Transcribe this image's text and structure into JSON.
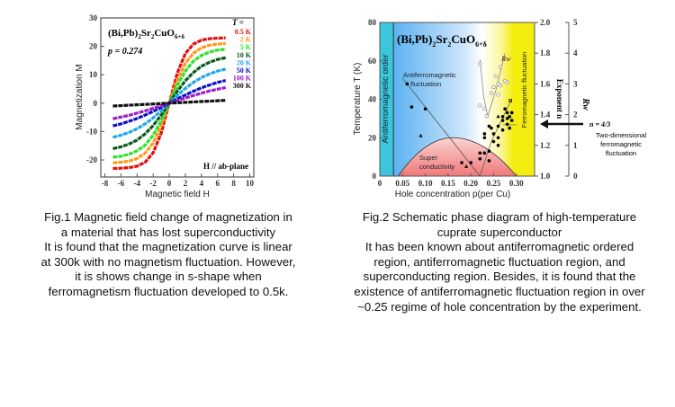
{
  "fig1": {
    "compound": "(Bi,Pb)",
    "sub1": "2",
    "sr": "Sr",
    "sub2": "2",
    "cuo": "CuO",
    "sub3": "6+δ",
    "p_label": "p = 0.274",
    "t_header": "T =",
    "field_note": "H // ab-plane",
    "xlabel": "Magnetic field H",
    "ylabel": "Magnetization M"
  },
  "fig2": {
    "compound": "(Bi,Pb)",
    "sub1": "2",
    "sr": "Sr",
    "sub2": "2",
    "cuo": "CuO",
    "sub3": "6+δ",
    "af_order": "Antiferromagnetic order",
    "af_fluct1": "Antiferromagnetic",
    "af_fluct2": "fluctuation",
    "sc1": "Super",
    "sc2": "conductivity",
    "fm_fluct": "Ferromagnetic fluctuation",
    "rw_label": "Rw",
    "n_label": "n",
    "exponent_label": "Exponent n",
    "rw_axis_label": "Rw",
    "n43": "n = 4/3",
    "twod1": "Two-dimensional",
    "twod2": "ferromagnetic",
    "twod3": "fluctuation",
    "xlabel": "Hole concentration p(per Cu)",
    "ylabel": "Temperature T (K)"
  },
  "caption1": [
    "Fig.1 Magnetic field change of magnetization in",
    "a material that has lost superconductivity",
    "It is found that the magnetization curve is linear",
    "at 300k with no magnetism fluctuation. However,",
    "it is shows change in s-shape when",
    "ferromagnetism fluctuation developed to 0.5k."
  ],
  "caption2": [
    "Fig.2 Schematic phase diagram of high-temperature",
    "cuprate superconductor",
    "It has been known about antiferromagnetic ordered",
    "region, antiferromagnetic fluctuation region, and",
    "superconducting region. Besides, it is found that the",
    "existence of antiferromagnetic fluctuation region in over",
    "~0.25 regime of hole concentration by the experiment."
  ],
  "chart_data": [
    {
      "type": "line",
      "title": "(Bi,Pb)2Sr2CuO6+δ, p = 0.274",
      "xlabel": "Magnetic field H",
      "ylabel": "Magnetization M",
      "xlim": [
        -8.5,
        10.5
      ],
      "ylim": [
        -26,
        30
      ],
      "xticks": [
        -8,
        -6,
        -4,
        -2,
        0,
        2,
        4,
        6,
        8,
        10
      ],
      "yticks": [
        -20,
        -10,
        0,
        10,
        20,
        30
      ],
      "symmetry": "odd",
      "x": [
        0,
        1,
        2,
        3,
        4,
        5,
        6,
        7
      ],
      "series": [
        {
          "name": "0.5 K",
          "color": "#e01010",
          "values": [
            0,
            10.6,
            17.5,
            20.8,
            22.2,
            22.7,
            22.9,
            23
          ]
        },
        {
          "name": "2 K",
          "color": "#ff9a1a",
          "values": [
            0,
            8.0,
            14.0,
            17.6,
            19.5,
            20.4,
            20.8,
            21
          ]
        },
        {
          "name": "5 K",
          "color": "#30e030",
          "values": [
            0,
            6.2,
            11.3,
            14.8,
            16.8,
            18.0,
            18.7,
            19
          ]
        },
        {
          "name": "10 K",
          "color": "#0a5a1a",
          "values": [
            0,
            4.2,
            7.9,
            10.8,
            13.0,
            14.4,
            15.4,
            16
          ]
        },
        {
          "name": "20 K",
          "color": "#20a8e8",
          "values": [
            0,
            2.7,
            5.2,
            7.3,
            9.0,
            10.3,
            11.3,
            12
          ]
        },
        {
          "name": "50 K",
          "color": "#1010c0",
          "values": [
            0,
            1.5,
            2.9,
            4.2,
            5.4,
            6.4,
            7.3,
            8
          ]
        },
        {
          "name": "100 K",
          "color": "#9a20c8",
          "values": [
            0,
            0.9,
            1.8,
            2.7,
            3.5,
            4.3,
            4.9,
            5.5
          ]
        },
        {
          "name": "300 K",
          "color": "#111111",
          "values": [
            0,
            0.14,
            0.29,
            0.43,
            0.57,
            0.71,
            0.86,
            1
          ]
        }
      ]
    },
    {
      "type": "scatter",
      "title": "Schematic phase diagram",
      "xlabel": "Hole concentration p(per Cu)",
      "ylabel": "Temperature T (K)",
      "xlim": [
        0,
        0.34
      ],
      "ylim": [
        0,
        80
      ],
      "xticks": [
        "0",
        "0.05",
        "0.10",
        "0.15",
        "0.20",
        "0.25",
        "0.30"
      ],
      "yticks": [
        0,
        20,
        40,
        60,
        80
      ],
      "n_axis": {
        "range": [
          1.0,
          2.0
        ],
        "ticks": [
          "1.0",
          "1.2",
          "1.4",
          "1.6",
          "1.8",
          "2.0"
        ]
      },
      "rw_axis": {
        "range": [
          0,
          5
        ],
        "ticks": [
          "0",
          "1",
          "2",
          "3",
          "4",
          "5"
        ]
      },
      "af_order_boundary": 0.03,
      "sc_dome": {
        "pmin": 0.04,
        "pmax": 0.3,
        "tmax": 20,
        "popt": 0.16
      },
      "af_line": [
        [
          0.05,
          51
        ],
        [
          0.22,
          0
        ]
      ],
      "n_4_3_T": 26.7,
      "T_points": [
        [
          0.06,
          48
        ],
        [
          0.07,
          36
        ],
        [
          0.1,
          35
        ],
        [
          0.18,
          7
        ],
        [
          0.2,
          7
        ],
        [
          0.22,
          12
        ],
        [
          0.22,
          9
        ],
        [
          0.23,
          12
        ],
        [
          0.24,
          13
        ],
        [
          0.24,
          8
        ],
        [
          0.23,
          22
        ],
        [
          0.23,
          20
        ],
        [
          0.24,
          26
        ],
        [
          0.245,
          25
        ],
        [
          0.25,
          22
        ],
        [
          0.25,
          18
        ],
        [
          0.26,
          16
        ],
        [
          0.26,
          20
        ],
        [
          0.26,
          26
        ],
        [
          0.27,
          31
        ],
        [
          0.27,
          29
        ],
        [
          0.28,
          33
        ],
        [
          0.28,
          30
        ],
        [
          0.28,
          27
        ],
        [
          0.285,
          25
        ],
        [
          0.29,
          29
        ],
        [
          0.275,
          35
        ],
        [
          0.29,
          33
        ],
        [
          0.27,
          24
        ],
        [
          0.285,
          31
        ]
      ],
      "triangles": [
        [
          0.09,
          21
        ],
        [
          0.19,
          5
        ],
        [
          0.26,
          31
        ]
      ],
      "Rw_points": [
        [
          0.22,
          3.65
        ],
        [
          0.22,
          2.3
        ],
        [
          0.23,
          2.2
        ],
        [
          0.235,
          1.95
        ],
        [
          0.245,
          2.7
        ],
        [
          0.25,
          2.9
        ],
        [
          0.255,
          3.25
        ],
        [
          0.26,
          3.0
        ],
        [
          0.265,
          3.55
        ],
        [
          0.265,
          2.95
        ],
        [
          0.275,
          3.1
        ],
        [
          0.28,
          3.05
        ],
        [
          0.26,
          2.65
        ]
      ]
    }
  ]
}
